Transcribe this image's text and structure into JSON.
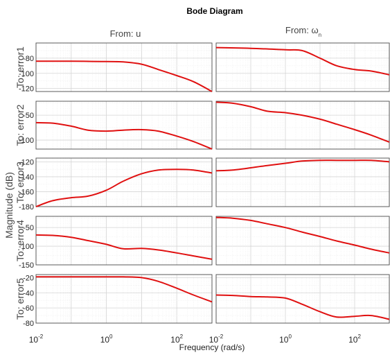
{
  "chart_data": {
    "type": "line",
    "title": "Bode Diagram",
    "ylabel": "Magnitude (dB)",
    "xlabel": "Frequency  (rad/s)",
    "x_scale": "log",
    "xlim": [
      0.01,
      1000
    ],
    "grid": true,
    "columns": [
      {
        "label": "From: u"
      },
      {
        "label_main": "From: ω",
        "label_sub": "n"
      }
    ],
    "x_ticks": [
      {
        "base": "10",
        "exp": "-2",
        "value": 0.01
      },
      {
        "base": "10",
        "exp": "0",
        "value": 1
      },
      {
        "base": "10",
        "exp": "2",
        "value": 100
      }
    ],
    "rows": [
      {
        "label": "To: error1",
        "ylim": [
          -124,
          -60
        ],
        "y_ticks": [
          {
            "v": -80,
            "t": "-80"
          },
          {
            "v": -100,
            "t": "-100"
          },
          {
            "v": -120,
            "t": "-120"
          }
        ]
      },
      {
        "label": "To: error2",
        "ylim": [
          -118,
          -22
        ],
        "y_ticks": [
          {
            "v": -50,
            "t": "-50"
          },
          {
            "v": -100,
            "t": "-100"
          }
        ]
      },
      {
        "label": "To: error3",
        "ylim": [
          -180,
          -115
        ],
        "y_ticks": [
          {
            "v": -120,
            "t": "-120"
          },
          {
            "v": -140,
            "t": "-140"
          },
          {
            "v": -160,
            "t": "-160"
          },
          {
            "v": -180,
            "t": "-180"
          }
        ]
      },
      {
        "label": "To: error4",
        "ylim": [
          -150,
          -20
        ],
        "y_ticks": [
          {
            "v": -50,
            "t": "-50"
          },
          {
            "v": -100,
            "t": "-100"
          },
          {
            "v": -150,
            "t": "-150"
          }
        ]
      },
      {
        "label": "To: error5",
        "ylim": [
          -80,
          -16
        ],
        "y_ticks": [
          {
            "v": -20,
            "t": "-20"
          },
          {
            "v": -40,
            "t": "-40"
          },
          {
            "v": -60,
            "t": "-60"
          },
          {
            "v": -80,
            "t": "-80"
          }
        ]
      }
    ],
    "series": [
      {
        "row": 0,
        "col": 0,
        "x": [
          0.01,
          0.1,
          1,
          3,
          10,
          30,
          100,
          300,
          1000
        ],
        "y": [
          -84,
          -84,
          -84.5,
          -85,
          -88,
          -95,
          -103,
          -111,
          -124
        ]
      },
      {
        "row": 0,
        "col": 1,
        "x": [
          0.01,
          0.1,
          1,
          3,
          10,
          30,
          100,
          300,
          1000
        ],
        "y": [
          -66,
          -67,
          -69,
          -70,
          -80,
          -90,
          -95,
          -97,
          -102
        ]
      },
      {
        "row": 1,
        "col": 0,
        "x": [
          0.01,
          0.03,
          0.1,
          0.3,
          1,
          3,
          10,
          30,
          100,
          300,
          1000
        ],
        "y": [
          -65,
          -66,
          -72,
          -80,
          -82,
          -80,
          -79,
          -82,
          -92,
          -103,
          -118
        ]
      },
      {
        "row": 1,
        "col": 1,
        "x": [
          0.01,
          0.03,
          0.1,
          0.3,
          1,
          3,
          10,
          30,
          100,
          300,
          1000
        ],
        "y": [
          -24,
          -26,
          -33,
          -42,
          -45,
          -50,
          -58,
          -68,
          -79,
          -90,
          -104
        ]
      },
      {
        "row": 2,
        "col": 0,
        "x": [
          0.01,
          0.03,
          0.1,
          0.3,
          1,
          3,
          10,
          30,
          100,
          300,
          1000
        ],
        "y": [
          -180,
          -172,
          -168,
          -166,
          -158,
          -146,
          -136,
          -131,
          -130,
          -131,
          -135
        ]
      },
      {
        "row": 2,
        "col": 1,
        "x": [
          0.01,
          0.03,
          0.1,
          0.3,
          1,
          3,
          10,
          30,
          100,
          300,
          1000
        ],
        "y": [
          -132,
          -131,
          -128,
          -125,
          -122,
          -119,
          -118,
          -118,
          -118,
          -118,
          -120
        ]
      },
      {
        "row": 3,
        "col": 0,
        "x": [
          0.01,
          0.03,
          0.1,
          0.3,
          1,
          3,
          10,
          30,
          100,
          300,
          1000
        ],
        "y": [
          -70,
          -71,
          -76,
          -85,
          -95,
          -107,
          -106,
          -110,
          -118,
          -126,
          -135
        ]
      },
      {
        "row": 3,
        "col": 1,
        "x": [
          0.01,
          0.03,
          0.1,
          0.3,
          1,
          3,
          10,
          30,
          100,
          300,
          1000
        ],
        "y": [
          -23,
          -25,
          -31,
          -40,
          -50,
          -62,
          -74,
          -86,
          -97,
          -108,
          -118
        ]
      },
      {
        "row": 4,
        "col": 0,
        "x": [
          0.01,
          0.1,
          1,
          3,
          10,
          30,
          100,
          300,
          1000
        ],
        "y": [
          -19,
          -19,
          -19,
          -19,
          -20,
          -25,
          -34,
          -43,
          -52
        ]
      },
      {
        "row": 4,
        "col": 1,
        "x": [
          0.01,
          0.03,
          0.1,
          0.3,
          1,
          3,
          10,
          30,
          100,
          300,
          1000
        ],
        "y": [
          -43,
          -43.5,
          -45,
          -45.5,
          -47,
          -55,
          -65,
          -72,
          -71,
          -70,
          -75
        ]
      }
    ]
  }
}
